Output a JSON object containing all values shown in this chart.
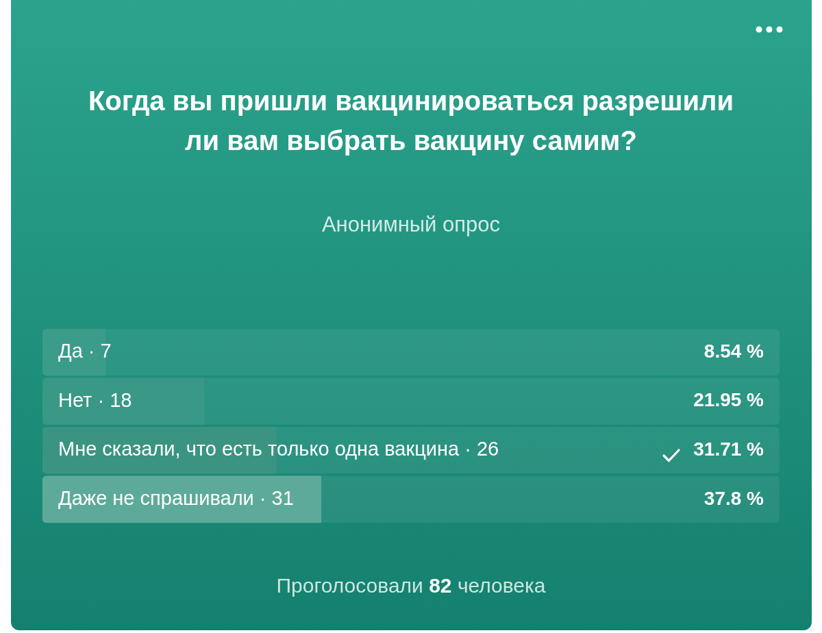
{
  "chart_data": {
    "type": "bar",
    "orientation": "horizontal",
    "title": "Когда вы пришли вакцинироваться разрешили ли вам выбрать вакцину самим?",
    "subtitle": "Анонимный опрос",
    "categories": [
      "Да · 7",
      "Нет · 18",
      "Мне сказали, что есть только одна вакцина · 26",
      "Даже не спрашивали · 31"
    ],
    "values": [
      8.54,
      21.95,
      31.71,
      37.8
    ],
    "value_labels": [
      "8.54 %",
      "21.95 %",
      "31.71 %",
      "37.8 %"
    ],
    "colors": [
      "#3a9c89",
      "#3a9886",
      "#3a9481",
      "#5eaa9a"
    ],
    "xlim": [
      0,
      100
    ],
    "tick_labels": "y",
    "annotations": [
      "Проголосовали 82 человека"
    ]
  }
}
